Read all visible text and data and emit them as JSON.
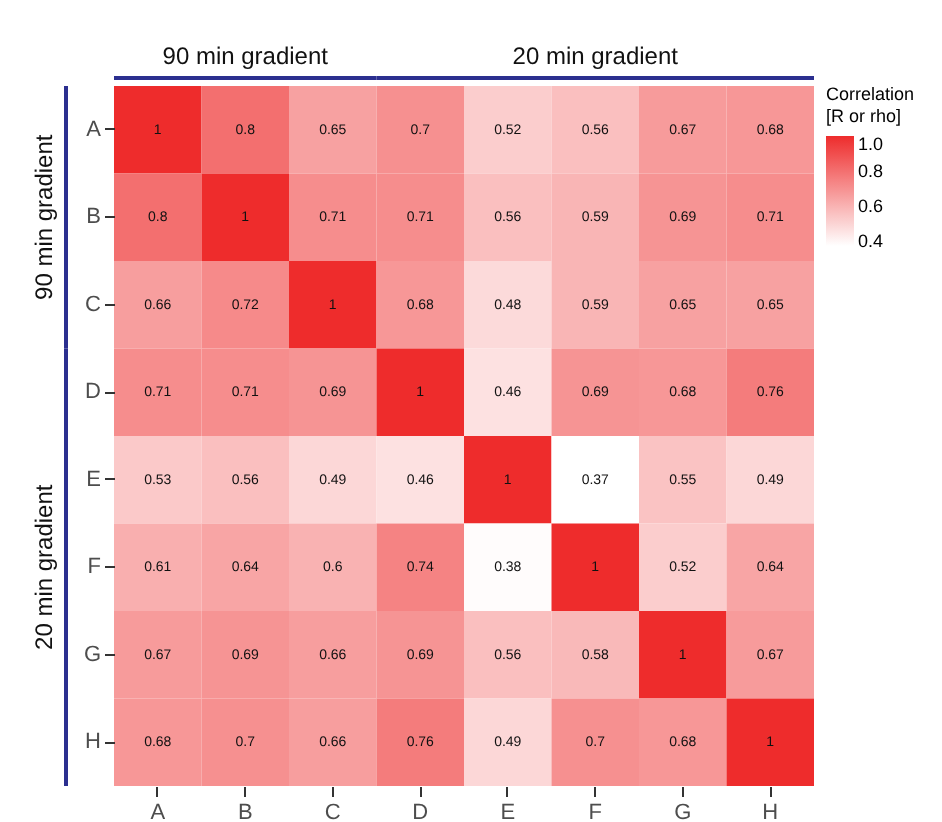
{
  "chart_data": {
    "type": "heatmap",
    "categories": [
      "A",
      "B",
      "C",
      "D",
      "E",
      "F",
      "G",
      "H"
    ],
    "y_categories": [
      "A",
      "B",
      "C",
      "D",
      "E",
      "F",
      "G",
      "H"
    ],
    "cells": [
      [
        1,
        0.8,
        0.65,
        0.7,
        0.52,
        0.56,
        0.67,
        0.68
      ],
      [
        0.8,
        1,
        0.71,
        0.71,
        0.56,
        0.59,
        0.69,
        0.71
      ],
      [
        0.66,
        0.72,
        1,
        0.68,
        0.48,
        0.59,
        0.65,
        0.65
      ],
      [
        0.71,
        0.71,
        0.69,
        1,
        0.46,
        0.69,
        0.68,
        0.76
      ],
      [
        0.53,
        0.56,
        0.49,
        0.46,
        1,
        0.37,
        0.55,
        0.49
      ],
      [
        0.61,
        0.64,
        0.6,
        0.74,
        0.38,
        1,
        0.52,
        0.64
      ],
      [
        0.67,
        0.69,
        0.66,
        0.69,
        0.56,
        0.58,
        1,
        0.67
      ],
      [
        0.68,
        0.7,
        0.66,
        0.76,
        0.49,
        0.7,
        0.68,
        1
      ]
    ],
    "data_labels": true,
    "clabel": "Correlation\n[R or rho]",
    "clim": [
      0.37,
      1
    ],
    "cticks": [
      0.4,
      0.6,
      0.8,
      {
        "value": 1,
        "label": "1.0"
      }
    ],
    "colors": [
      "#ffffff",
      "#ee2c2c"
    ],
    "annotations": [
      "90 min gradient",
      "20 min gradient",
      "90 min gradient",
      "20 min gradient"
    ]
  }
}
